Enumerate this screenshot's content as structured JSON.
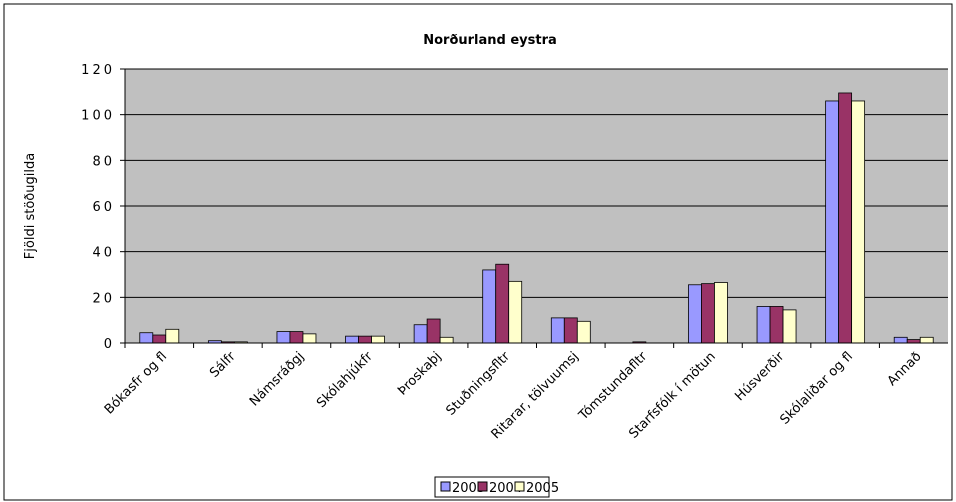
{
  "chart_data": {
    "type": "bar",
    "title": "Norðurland eystra",
    "y_label": "Fjöldi stöðugilda",
    "categories": [
      "Bókasfr og fl",
      "Sálfr",
      "Námsráðgj",
      "Skólahjúkfr",
      "Þroskaþj",
      "Stuðningsfltr",
      "Ritarar, tölvuumsj",
      "Tómstundafltr",
      "Starfsfólk í mötun",
      "Húsverðir",
      "Skólaliðar og fl",
      "Annað"
    ],
    "series": [
      {
        "name": "2003",
        "color": "#9999ff",
        "values": [
          4.5,
          1,
          5,
          3,
          8,
          32,
          11,
          0,
          25.5,
          16,
          106,
          2.5
        ]
      },
      {
        "name": "2004",
        "color": "#993366",
        "values": [
          3.5,
          0.5,
          5,
          3,
          10.5,
          34.5,
          11,
          0.5,
          26,
          16,
          109.5,
          1.5
        ]
      },
      {
        "name": "2005",
        "color": "#ffffcc",
        "values": [
          6,
          0.5,
          4,
          3,
          2.5,
          27,
          9.5,
          0,
          26.5,
          14.5,
          106,
          2.5
        ]
      }
    ],
    "ylim": [
      0,
      120
    ],
    "yticks": [
      0,
      20,
      40,
      60,
      80,
      100,
      120
    ],
    "grid": true,
    "legend": "bottom"
  }
}
